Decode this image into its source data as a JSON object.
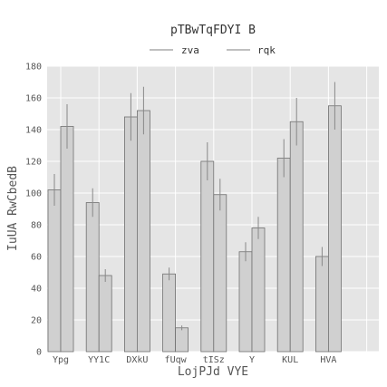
{
  "chart_data": {
    "type": "bar",
    "title": "pTBwTqFDYI B",
    "xlabel": "LojPJd VYE",
    "ylabel": "IuUA RwCbedB",
    "ylim": [
      0,
      180
    ],
    "yticks": [
      0,
      20,
      40,
      60,
      80,
      100,
      120,
      140,
      160,
      180
    ],
    "grid": true,
    "legend_position": "top-center",
    "categories": [
      "Ypg",
      "YY1C",
      "DXkU",
      "fUqw",
      "tISz",
      "Y",
      "KUL",
      "HVA"
    ],
    "series": [
      {
        "name": "zva",
        "values": [
          102,
          94,
          148,
          49,
          120,
          63,
          122,
          60
        ],
        "errors": [
          10,
          9,
          15,
          4,
          12,
          6,
          12,
          6
        ]
      },
      {
        "name": "rqk",
        "values": [
          142,
          48,
          152,
          15,
          99,
          78,
          145,
          155
        ],
        "errors": [
          14,
          4,
          15,
          1.5,
          10,
          7,
          15,
          15
        ]
      }
    ],
    "colors": {
      "background": "#e5e5e5",
      "grid": "#ffffff",
      "bar": "#d0d0d0",
      "bar_edge": "#707070",
      "error": "#888888",
      "text": "#555555",
      "legend_line": "#999999"
    }
  }
}
